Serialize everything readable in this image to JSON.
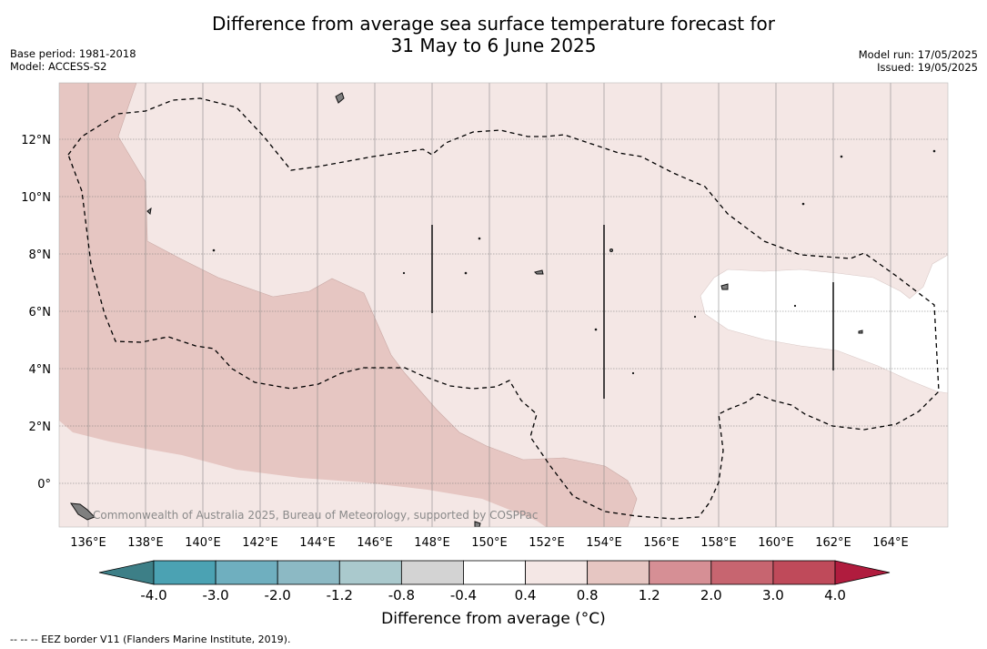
{
  "header": {
    "title_line1": "Difference from average sea surface temperature forecast for",
    "title_line2": "31 May to 6 June 2025",
    "base_period": "Base period: 1981-2018",
    "model": "Model: ACCESS-S2",
    "model_run": "Model run: 17/05/2025",
    "issued": "Issued: 19/05/2025"
  },
  "map": {
    "lon_labels": [
      "136°E",
      "138°E",
      "140°E",
      "142°E",
      "144°E",
      "146°E",
      "148°E",
      "150°E",
      "152°E",
      "154°E",
      "156°E",
      "158°E",
      "160°E",
      "162°E",
      "164°E"
    ],
    "lat_labels": [
      "12°N",
      "10°N",
      "8°N",
      "6°N",
      "4°N",
      "2°N",
      "0°"
    ],
    "watermark": "Commonwealth of Australia 2025, Bureau of Meteorology, supported by COSPPac",
    "colors": {
      "background_class": "#f4e7e5",
      "warmer_class": "#e6c6c2",
      "neutral_class": "#ffffff",
      "land": "#7f7f7f"
    }
  },
  "colorbar": {
    "ticks": [
      "-4.0",
      "-3.0",
      "-2.0",
      "-1.2",
      "-0.8",
      "-0.4",
      "0.4",
      "0.8",
      "1.2",
      "2.0",
      "3.0",
      "4.0"
    ],
    "colors": [
      "#3d7f87",
      "#4ba2b3",
      "#6fafbf",
      "#8cb9c4",
      "#aac9cd",
      "#d3d3d3",
      "#ffffff",
      "#f4e7e5",
      "#e6c6c2",
      "#d68f95",
      "#c76570",
      "#bf4a5a",
      "#b01c3e"
    ],
    "title": "Difference from average (°C)"
  },
  "footer": {
    "legend": "--  --  -- EEZ border V11 (Flanders Marine Institute, 2019)."
  }
}
